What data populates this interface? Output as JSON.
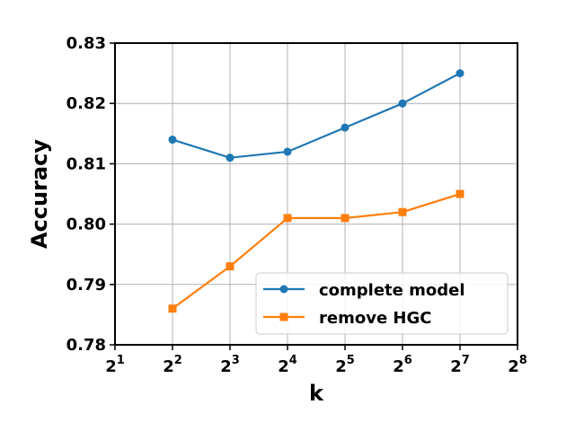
{
  "chart_data": {
    "type": "line",
    "title": "",
    "xlabel": "k",
    "ylabel": "Accuracy",
    "x_scale": "log2",
    "x": [
      4,
      8,
      16,
      32,
      64,
      128
    ],
    "xlim": [
      2,
      256
    ],
    "x_ticks": [
      {
        "value": 2,
        "base": "2",
        "exp": "1"
      },
      {
        "value": 4,
        "base": "2",
        "exp": "2"
      },
      {
        "value": 8,
        "base": "2",
        "exp": "3"
      },
      {
        "value": 16,
        "base": "2",
        "exp": "4"
      },
      {
        "value": 32,
        "base": "2",
        "exp": "5"
      },
      {
        "value": 64,
        "base": "2",
        "exp": "6"
      },
      {
        "value": 128,
        "base": "2",
        "exp": "7"
      },
      {
        "value": 256,
        "base": "2",
        "exp": "8"
      }
    ],
    "ylim": [
      0.78,
      0.83
    ],
    "y_ticks": [
      {
        "value": 0.78,
        "label": "0.78"
      },
      {
        "value": 0.79,
        "label": "0.79"
      },
      {
        "value": 0.8,
        "label": "0.80"
      },
      {
        "value": 0.81,
        "label": "0.81"
      },
      {
        "value": 0.82,
        "label": "0.82"
      },
      {
        "value": 0.83,
        "label": "0.83"
      }
    ],
    "grid": true,
    "legend_position": "lower-right",
    "series": [
      {
        "name": "complete model",
        "values": [
          0.814,
          0.811,
          0.812,
          0.816,
          0.82,
          0.825
        ],
        "color": "#1f77b4",
        "marker": "circle"
      },
      {
        "name": "remove HGC",
        "values": [
          0.786,
          0.793,
          0.801,
          0.801,
          0.802,
          0.805
        ],
        "color": "#ff7f0e",
        "marker": "square"
      }
    ]
  }
}
